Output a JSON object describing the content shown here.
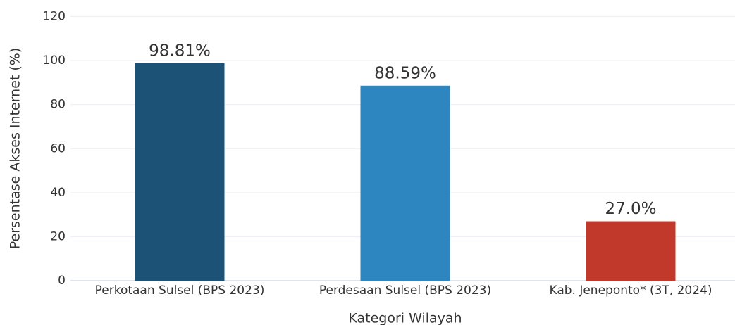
{
  "chart_data": {
    "type": "bar",
    "categories": [
      "Perkotaan Sulsel (BPS 2023)",
      "Perdesaan Sulsel (BPS 2023)",
      "Kab. Jeneponto* (3T, 2024)"
    ],
    "values": [
      98.81,
      88.59,
      27.0
    ],
    "value_labels": [
      "98.81%",
      "88.59%",
      "27.0%"
    ],
    "colors": [
      "#1b5276",
      "#2e86c1",
      "#c0392b"
    ],
    "xlabel": "Kategori Wilayah",
    "ylabel": "Persentase Akses Internet (%)",
    "ylim": [
      0,
      120
    ],
    "yticks": [
      0,
      20,
      40,
      60,
      80,
      100,
      120
    ],
    "grid": true
  }
}
